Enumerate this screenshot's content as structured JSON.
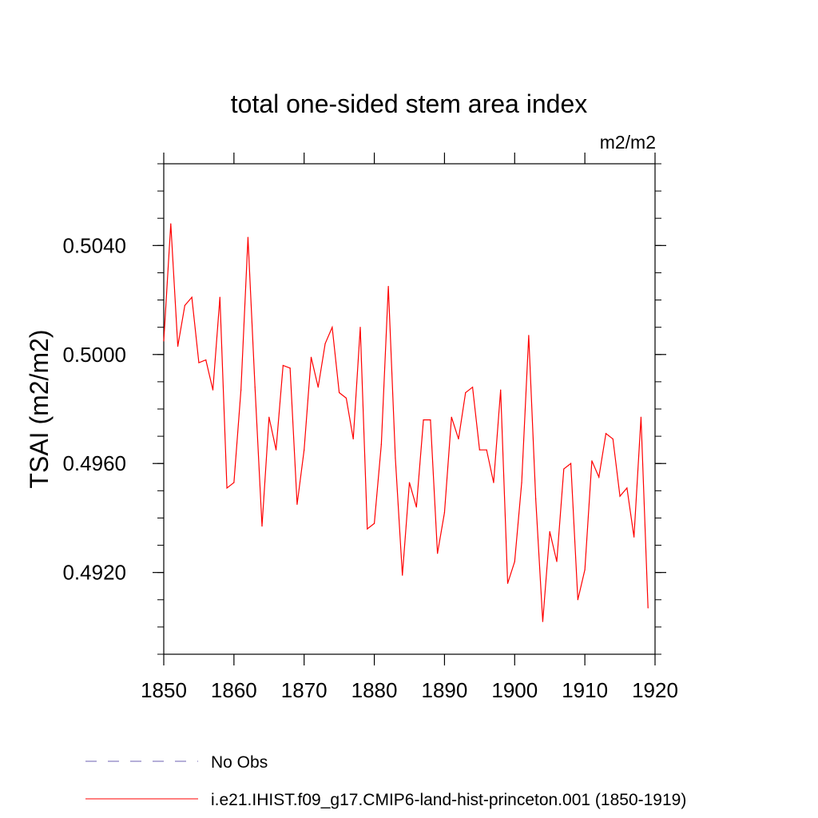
{
  "chart_data": {
    "type": "line",
    "title": "total one-sided stem area index",
    "units": "m2/m2",
    "ylabel": "TSAI  (m2/m2)",
    "xlabel": "",
    "xlim": [
      1850,
      1920
    ],
    "ylim": [
      0.489,
      0.507
    ],
    "xticks": [
      1850,
      1860,
      1870,
      1880,
      1890,
      1900,
      1910,
      1920
    ],
    "yticks": [
      "0.4920",
      "0.4960",
      "0.5000",
      "0.5040"
    ],
    "grid": false,
    "legend_placement": "bottom",
    "series": [
      {
        "name": "i.e21.IHIST.f09_g17.CMIP6-land-hist-princeton.001 (1850-1919)",
        "color": "#ff0000",
        "style": "solid",
        "x": [
          1850,
          1851,
          1852,
          1853,
          1854,
          1855,
          1856,
          1857,
          1858,
          1859,
          1860,
          1861,
          1862,
          1863,
          1864,
          1865,
          1866,
          1867,
          1868,
          1869,
          1870,
          1871,
          1872,
          1873,
          1874,
          1875,
          1876,
          1877,
          1878,
          1879,
          1880,
          1881,
          1882,
          1883,
          1884,
          1885,
          1886,
          1887,
          1888,
          1889,
          1890,
          1891,
          1892,
          1893,
          1894,
          1895,
          1896,
          1897,
          1898,
          1899,
          1900,
          1901,
          1902,
          1903,
          1904,
          1905,
          1906,
          1907,
          1908,
          1909,
          1910,
          1911,
          1912,
          1913,
          1914,
          1915,
          1916,
          1917,
          1918,
          1919
        ],
        "values": [
          0.5005,
          0.5048,
          0.5003,
          0.5018,
          0.5021,
          0.4997,
          0.4998,
          0.4987,
          0.5021,
          0.4951,
          0.4953,
          0.4987,
          0.5043,
          0.4988,
          0.4937,
          0.4977,
          0.4965,
          0.4996,
          0.4995,
          0.4945,
          0.4965,
          0.4999,
          0.4988,
          0.5004,
          0.501,
          0.4986,
          0.4984,
          0.4969,
          0.501,
          0.4936,
          0.4938,
          0.4967,
          0.5025,
          0.4962,
          0.4919,
          0.4953,
          0.4944,
          0.4976,
          0.4976,
          0.4927,
          0.4942,
          0.4977,
          0.4969,
          0.4986,
          0.4988,
          0.4965,
          0.4965,
          0.4953,
          0.4987,
          0.4916,
          0.4924,
          0.4953,
          0.5007,
          0.4947,
          0.4902,
          0.4935,
          0.4924,
          0.4958,
          0.496,
          0.491,
          0.4921,
          0.4961,
          0.4955,
          0.4971,
          0.4969,
          0.4948,
          0.4951,
          0.4933,
          0.4977,
          0.4907
        ]
      }
    ],
    "legend": [
      {
        "label": "No Obs",
        "color": "#6b5fb0",
        "style": "dashed"
      },
      {
        "label": "i.e21.IHIST.f09_g17.CMIP6-land-hist-princeton.001 (1850-1919)",
        "color": "#ff0000",
        "style": "solid"
      }
    ]
  }
}
